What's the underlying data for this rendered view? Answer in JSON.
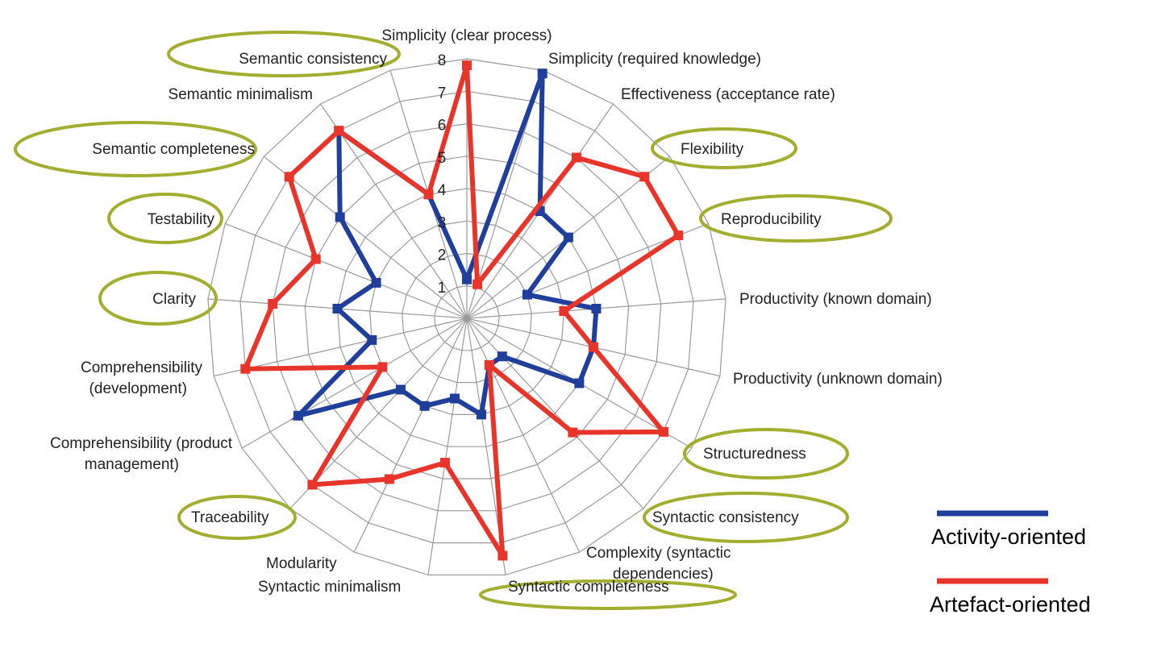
{
  "chart_data": {
    "type": "radar",
    "title": "",
    "rlim": [
      0,
      8
    ],
    "ticks": [
      1,
      2,
      3,
      4,
      5,
      6,
      7,
      8
    ],
    "categories": [
      "Simplicity (clear process)",
      "Simplicity (required knowledge)",
      "Effectiveness (acceptance rate)",
      "Flexibility",
      "Reproducibility",
      "Productivity (known domain)",
      "Productivity (unknown domain)",
      "Structuredness",
      "Syntactic consistency",
      "Complexity (syntactic dependencies)",
      "Syntactic completeness",
      "Syntactic minimalism",
      "Modularity",
      "Traceability",
      "Comprehensibility (product management)",
      "Comprehensibility (development)",
      "Clarity",
      "Testability",
      "Semantic completeness",
      "Semantic minimalism",
      "Semantic consistency"
    ],
    "highlighted_categories": [
      "Flexibility",
      "Reproducibility",
      "Structuredness",
      "Syntactic consistency",
      "Syntactic completeness",
      "Traceability",
      "Clarity",
      "Testability",
      "Semantic completeness",
      "Semantic consistency"
    ],
    "series": [
      {
        "name": "Activity-oriented",
        "color": "#1f3f9a",
        "values": [
          1.2,
          7.9,
          4.0,
          4.0,
          2.0,
          4.0,
          4.0,
          4.0,
          1.6,
          1.6,
          3.0,
          2.5,
          3.0,
          3.0,
          6.0,
          3.0,
          4.0,
          3.0,
          5.0,
          7.0,
          4.0
        ]
      },
      {
        "name": "Artefact-oriented",
        "color": "#e8352b",
        "values": [
          7.8,
          1.1,
          6.0,
          7.0,
          7.0,
          3.0,
          4.0,
          7.0,
          4.8,
          1.6,
          7.4,
          4.5,
          5.5,
          7.0,
          3.0,
          7.0,
          6.0,
          5.0,
          7.0,
          7.0,
          4.0
        ]
      }
    ],
    "grid": true,
    "legend": "right"
  }
}
